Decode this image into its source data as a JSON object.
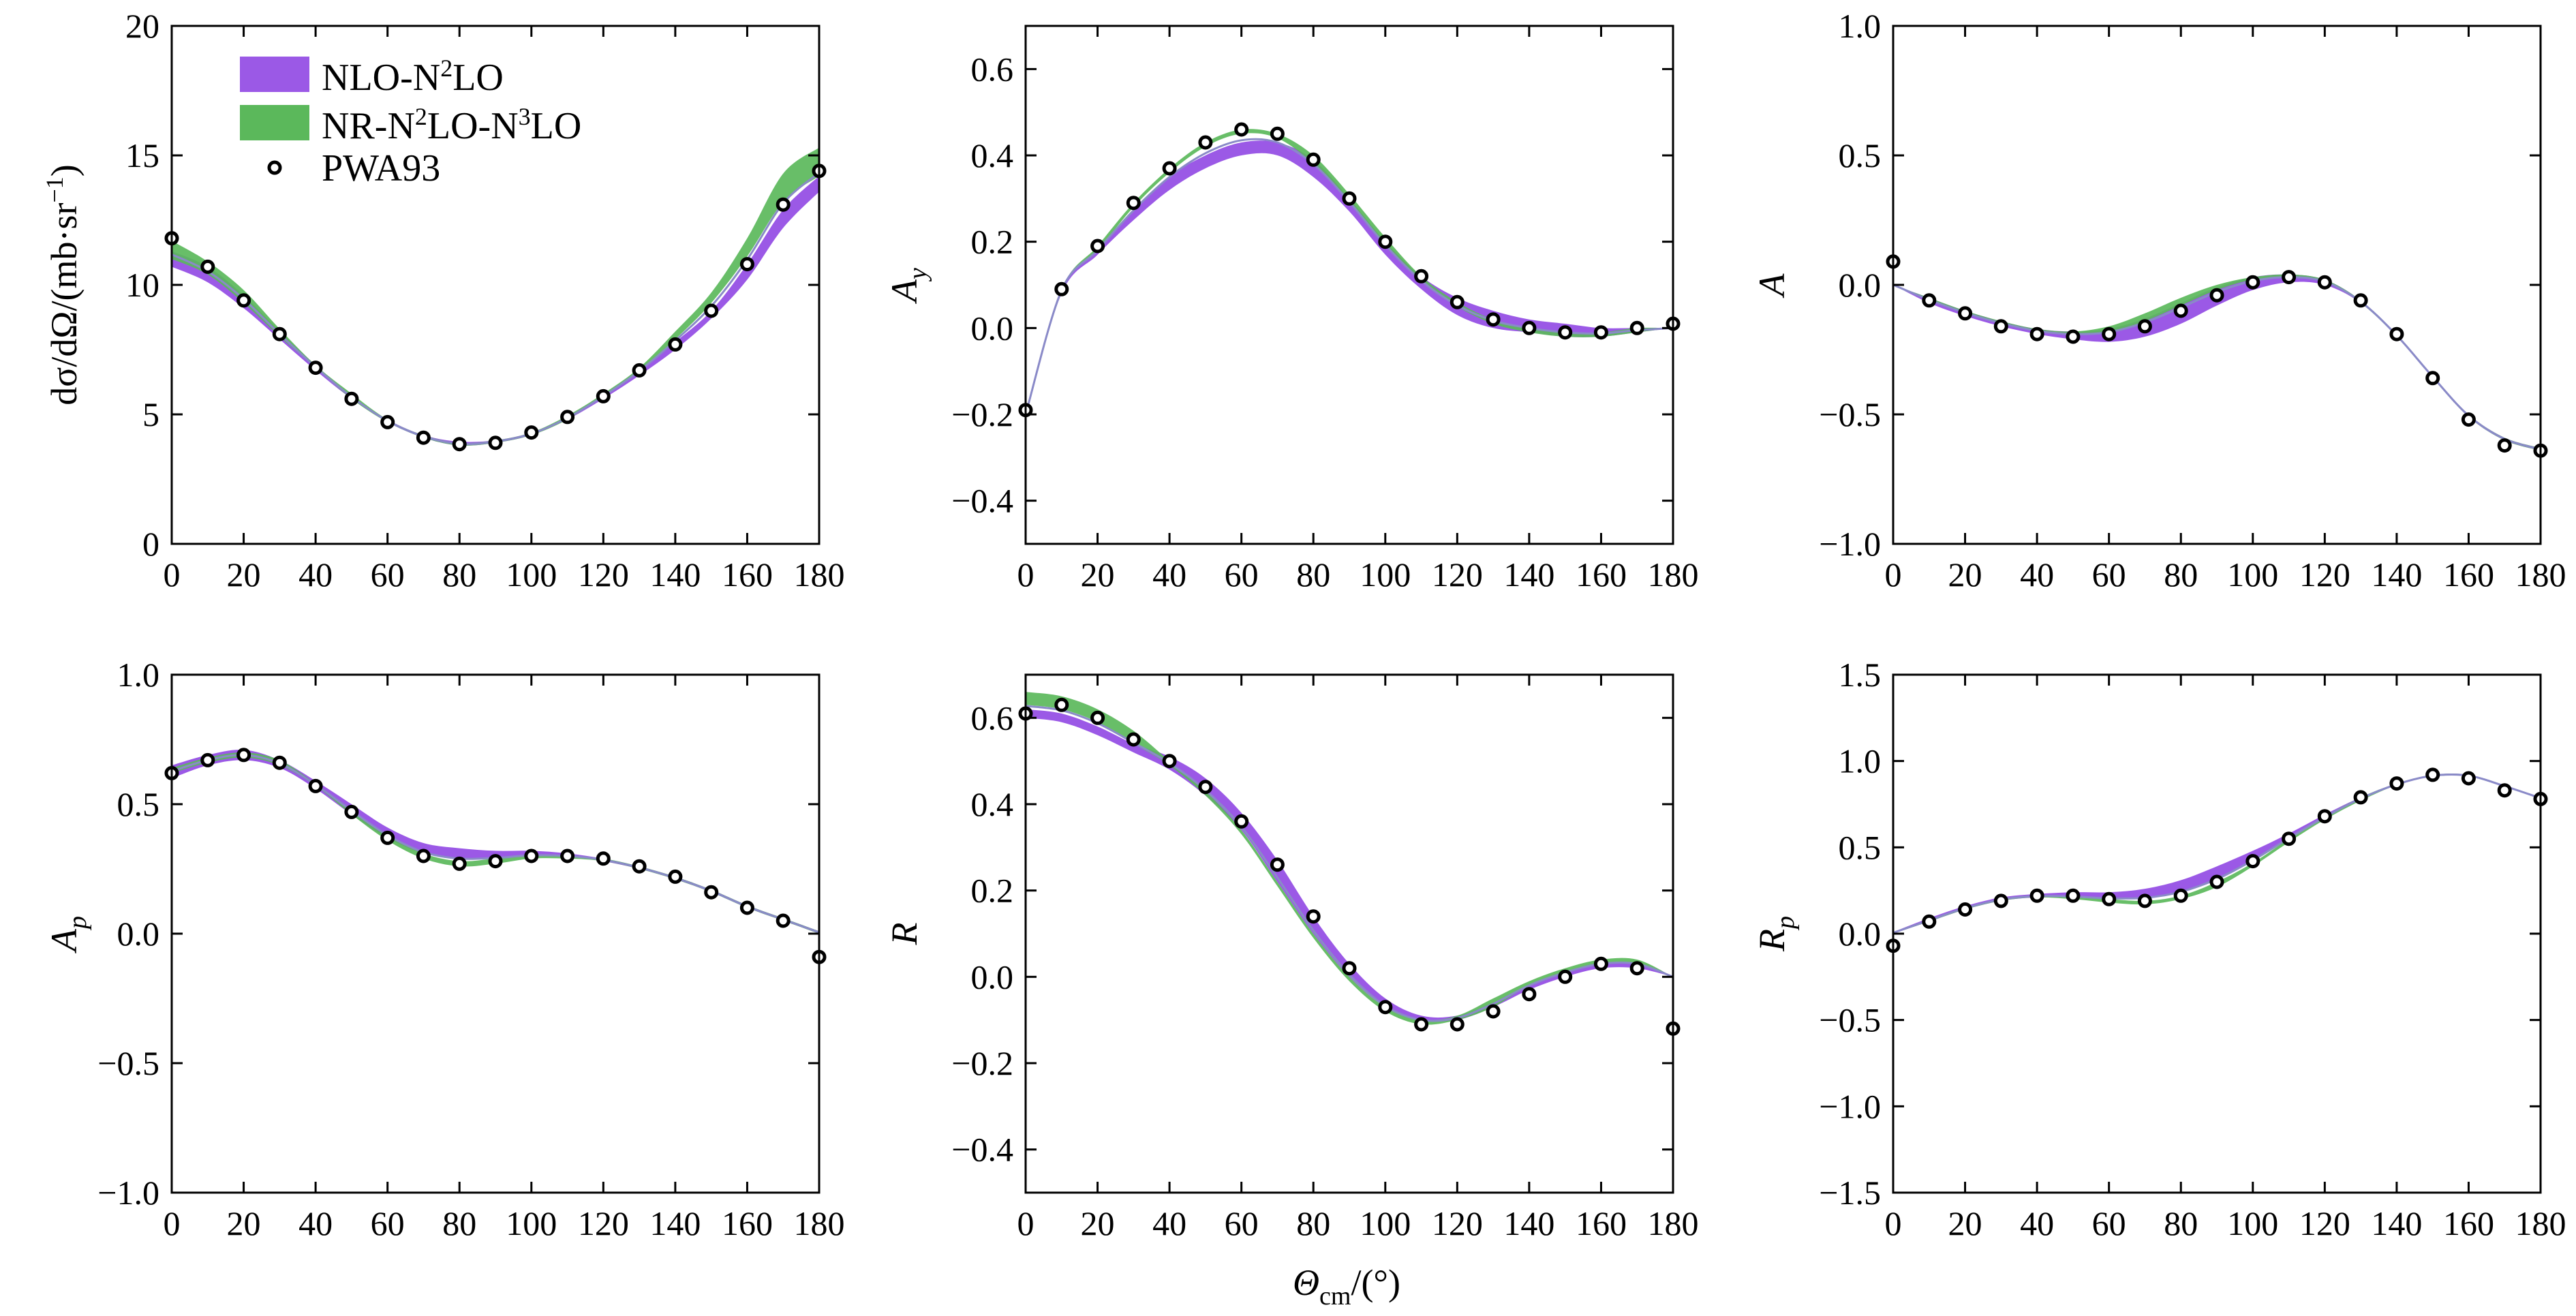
{
  "legend": {
    "items": [
      {
        "label_main": "NLO-N",
        "sup": "2",
        "label_tail": "LO",
        "color": "#9b59e6"
      },
      {
        "label_main": "NR-N",
        "sup": "2",
        "label_mid": "LO-N",
        "sup2": "3",
        "label_tail": "LO",
        "color": "#5bb85b"
      },
      {
        "label_main": "PWA93"
      }
    ]
  },
  "x_axis_label": {
    "main": "Θ",
    "sub": "cm",
    "tail": "/(°)"
  },
  "colors": {
    "nlo_band": "#9b59e6",
    "nr_band": "#5bb85b",
    "thin_line": "#8a8ac8",
    "marker": "#000000"
  },
  "chart_data": [
    {
      "id": "dsdo",
      "type": "line",
      "ylabel": {
        "parts": [
          "dσ/dΩ/(mb·sr",
          "−1",
          ")"
        ]
      },
      "ylim": [
        0,
        20
      ],
      "yticks": [
        0,
        5,
        10,
        15,
        20
      ],
      "ytick_labels": [
        "0",
        "5",
        "10",
        "15",
        "20"
      ],
      "xlim": [
        0,
        180
      ],
      "xticks": [
        0,
        20,
        40,
        60,
        80,
        100,
        120,
        140,
        160,
        180
      ],
      "xtick_labels": [
        "0",
        "20",
        "40",
        "60",
        "80",
        "100",
        "120",
        "140",
        "160",
        "180"
      ],
      "x": [
        0,
        10,
        20,
        30,
        40,
        50,
        60,
        70,
        80,
        90,
        100,
        110,
        120,
        130,
        140,
        150,
        160,
        170,
        180
      ],
      "series": [
        {
          "name": "NLO-N2LO",
          "kind": "band",
          "lower": [
            10.7,
            10.1,
            9.1,
            7.9,
            6.7,
            5.6,
            4.7,
            4.1,
            3.8,
            3.9,
            4.2,
            4.8,
            5.6,
            6.5,
            7.5,
            8.7,
            10.2,
            12.2,
            13.6
          ],
          "upper": [
            11.3,
            10.7,
            9.6,
            8.2,
            6.9,
            5.7,
            4.8,
            4.2,
            3.95,
            4.0,
            4.3,
            4.9,
            5.7,
            6.7,
            7.8,
            9.0,
            10.8,
            12.9,
            14.2
          ]
        },
        {
          "name": "NR-N2LO-N3LO",
          "kind": "band",
          "lower": [
            11.0,
            10.4,
            9.3,
            8.0,
            6.8,
            5.6,
            4.7,
            4.1,
            3.8,
            3.9,
            4.2,
            4.8,
            5.7,
            6.7,
            7.9,
            9.3,
            11.1,
            13.2,
            14.2
          ],
          "upper": [
            11.7,
            10.9,
            9.8,
            8.3,
            6.9,
            5.8,
            4.8,
            4.2,
            3.9,
            4.0,
            4.3,
            4.95,
            5.8,
            6.8,
            8.2,
            9.7,
            11.8,
            14.3,
            15.3
          ]
        },
        {
          "name": "PWA93",
          "kind": "points",
          "values": [
            11.8,
            10.7,
            9.4,
            8.1,
            6.8,
            5.6,
            4.7,
            4.1,
            3.85,
            3.9,
            4.3,
            4.9,
            5.7,
            6.7,
            7.7,
            9.0,
            10.8,
            13.1,
            14.4
          ]
        }
      ]
    },
    {
      "id": "ay",
      "type": "line",
      "ylabel": {
        "parts": [
          "A",
          "y",
          ""
        ]
      },
      "ylim": [
        -0.5,
        0.7
      ],
      "yticks": [
        -0.4,
        -0.2,
        0.0,
        0.2,
        0.4,
        0.6
      ],
      "ytick_labels": [
        "−0.4",
        "−0.2",
        "0.0",
        "0.2",
        "0.4",
        "0.6"
      ],
      "xlim": [
        0,
        180
      ],
      "xticks": [
        0,
        20,
        40,
        60,
        80,
        100,
        120,
        140,
        160,
        180
      ],
      "xtick_labels": [
        "0",
        "20",
        "40",
        "60",
        "80",
        "100",
        "120",
        "140",
        "160",
        "180"
      ],
      "x": [
        0,
        10,
        20,
        30,
        40,
        50,
        60,
        70,
        80,
        90,
        100,
        110,
        120,
        130,
        140,
        150,
        160,
        170,
        180
      ],
      "series": [
        {
          "name": "NLO-N2LO",
          "kind": "band",
          "lower": [
            -0.2,
            0.08,
            0.17,
            0.25,
            0.32,
            0.37,
            0.4,
            0.4,
            0.35,
            0.27,
            0.17,
            0.09,
            0.03,
            0.0,
            -0.01,
            -0.02,
            -0.02,
            -0.01,
            0.0
          ],
          "upper": [
            -0.2,
            0.09,
            0.18,
            0.27,
            0.35,
            0.4,
            0.43,
            0.43,
            0.39,
            0.3,
            0.2,
            0.12,
            0.07,
            0.04,
            0.02,
            0.01,
            0.0,
            0.0,
            0.0
          ]
        },
        {
          "name": "NR-N2LO-N3LO",
          "kind": "band",
          "lower": [
            -0.2,
            0.09,
            0.18,
            0.28,
            0.36,
            0.42,
            0.45,
            0.44,
            0.38,
            0.29,
            0.19,
            0.11,
            0.05,
            0.01,
            -0.01,
            -0.02,
            -0.02,
            -0.01,
            0.0
          ],
          "upper": [
            -0.2,
            0.09,
            0.19,
            0.29,
            0.37,
            0.43,
            0.46,
            0.45,
            0.4,
            0.31,
            0.21,
            0.12,
            0.06,
            0.02,
            0.0,
            -0.01,
            -0.01,
            0.0,
            0.0
          ]
        },
        {
          "name": "PWA93",
          "kind": "points",
          "values": [
            -0.19,
            0.09,
            0.19,
            0.29,
            0.37,
            0.43,
            0.46,
            0.45,
            0.39,
            0.3,
            0.2,
            0.12,
            0.06,
            0.02,
            0.0,
            -0.01,
            -0.01,
            0.0,
            0.01
          ]
        }
      ]
    },
    {
      "id": "a",
      "type": "line",
      "ylabel": {
        "parts": [
          "A",
          "",
          ""
        ]
      },
      "ylim": [
        -1.0,
        1.0
      ],
      "yticks": [
        -1.0,
        -0.5,
        0.0,
        0.5,
        1.0
      ],
      "ytick_labels": [
        "−1.0",
        "−0.5",
        "0.0",
        "0.5",
        "1.0"
      ],
      "xlim": [
        0,
        180
      ],
      "xticks": [
        0,
        20,
        40,
        60,
        80,
        100,
        120,
        140,
        160,
        180
      ],
      "xtick_labels": [
        "0",
        "20",
        "40",
        "60",
        "80",
        "100",
        "120",
        "140",
        "160",
        "180"
      ],
      "x": [
        0,
        10,
        20,
        30,
        40,
        50,
        60,
        70,
        80,
        90,
        100,
        110,
        120,
        130,
        140,
        150,
        160,
        170,
        180
      ],
      "series": [
        {
          "name": "NLO-N2LO",
          "kind": "band",
          "lower": [
            0.0,
            -0.07,
            -0.12,
            -0.16,
            -0.19,
            -0.21,
            -0.22,
            -0.2,
            -0.15,
            -0.08,
            -0.02,
            0.01,
            0.0,
            -0.07,
            -0.2,
            -0.36,
            -0.51,
            -0.6,
            -0.64
          ],
          "upper": [
            0.0,
            -0.05,
            -0.1,
            -0.14,
            -0.17,
            -0.18,
            -0.17,
            -0.13,
            -0.07,
            -0.01,
            0.03,
            0.04,
            0.02,
            -0.06,
            -0.19,
            -0.35,
            -0.5,
            -0.59,
            -0.63
          ]
        },
        {
          "name": "NR-N2LO-N3LO",
          "kind": "band",
          "lower": [
            0.0,
            -0.06,
            -0.11,
            -0.15,
            -0.18,
            -0.19,
            -0.18,
            -0.14,
            -0.08,
            -0.02,
            0.02,
            0.03,
            0.01,
            -0.07,
            -0.2,
            -0.36,
            -0.51,
            -0.6,
            -0.64
          ],
          "upper": [
            0.0,
            -0.05,
            -0.1,
            -0.14,
            -0.17,
            -0.18,
            -0.16,
            -0.11,
            -0.05,
            0.0,
            0.03,
            0.04,
            0.02,
            -0.06,
            -0.19,
            -0.35,
            -0.5,
            -0.59,
            -0.63
          ]
        },
        {
          "name": "PWA93",
          "kind": "points",
          "values": [
            0.09,
            -0.06,
            -0.11,
            -0.16,
            -0.19,
            -0.2,
            -0.19,
            -0.16,
            -0.1,
            -0.04,
            0.01,
            0.03,
            0.01,
            -0.06,
            -0.19,
            -0.36,
            -0.52,
            -0.62,
            -0.64
          ]
        }
      ]
    },
    {
      "id": "ap",
      "type": "line",
      "ylabel": {
        "parts": [
          "A",
          "p",
          ""
        ]
      },
      "ylim": [
        -1.0,
        1.0
      ],
      "yticks": [
        -1.0,
        -0.5,
        0.0,
        0.5,
        1.0
      ],
      "ytick_labels": [
        "−1.0",
        "−0.5",
        "0.0",
        "0.5",
        "1.0"
      ],
      "xlim": [
        0,
        180
      ],
      "xticks": [
        0,
        20,
        40,
        60,
        80,
        100,
        120,
        140,
        160,
        180
      ],
      "xtick_labels": [
        "0",
        "20",
        "40",
        "60",
        "80",
        "100",
        "120",
        "140",
        "160",
        "180"
      ],
      "x": [
        0,
        10,
        20,
        30,
        40,
        50,
        60,
        70,
        80,
        90,
        100,
        110,
        120,
        130,
        140,
        150,
        160,
        170,
        180
      ],
      "series": [
        {
          "name": "NLO-N2LO",
          "kind": "band",
          "lower": [
            0.6,
            0.65,
            0.67,
            0.64,
            0.56,
            0.46,
            0.37,
            0.31,
            0.29,
            0.29,
            0.3,
            0.3,
            0.28,
            0.25,
            0.21,
            0.16,
            0.1,
            0.05,
            0.0
          ],
          "upper": [
            0.65,
            0.69,
            0.71,
            0.67,
            0.59,
            0.5,
            0.41,
            0.35,
            0.33,
            0.32,
            0.32,
            0.31,
            0.29,
            0.26,
            0.22,
            0.17,
            0.11,
            0.06,
            0.01
          ]
        },
        {
          "name": "NR-N2LO-N3LO",
          "kind": "band",
          "lower": [
            0.62,
            0.66,
            0.68,
            0.65,
            0.57,
            0.46,
            0.36,
            0.29,
            0.26,
            0.27,
            0.29,
            0.29,
            0.28,
            0.25,
            0.21,
            0.16,
            0.1,
            0.05,
            0.0
          ],
          "upper": [
            0.64,
            0.68,
            0.7,
            0.67,
            0.58,
            0.48,
            0.38,
            0.31,
            0.28,
            0.29,
            0.3,
            0.3,
            0.29,
            0.26,
            0.22,
            0.17,
            0.11,
            0.06,
            0.01
          ]
        },
        {
          "name": "PWA93",
          "kind": "points",
          "values": [
            0.62,
            0.67,
            0.69,
            0.66,
            0.57,
            0.47,
            0.37,
            0.3,
            0.27,
            0.28,
            0.3,
            0.3,
            0.29,
            0.26,
            0.22,
            0.16,
            0.1,
            0.05,
            -0.09
          ]
        }
      ]
    },
    {
      "id": "r",
      "type": "line",
      "ylabel": {
        "parts": [
          "R",
          "",
          ""
        ]
      },
      "ylim": [
        -0.5,
        0.7
      ],
      "yticks": [
        -0.4,
        -0.2,
        0.0,
        0.2,
        0.4,
        0.6
      ],
      "ytick_labels": [
        "−0.4",
        "−0.2",
        "0.0",
        "0.2",
        "0.4",
        "0.6"
      ],
      "xlim": [
        0,
        180
      ],
      "xticks": [
        0,
        20,
        40,
        60,
        80,
        100,
        120,
        140,
        160,
        180
      ],
      "xtick_labels": [
        "0",
        "20",
        "40",
        "60",
        "80",
        "100",
        "120",
        "140",
        "160",
        "180"
      ],
      "x": [
        0,
        10,
        20,
        30,
        40,
        50,
        60,
        70,
        80,
        90,
        100,
        110,
        120,
        130,
        140,
        150,
        160,
        170,
        180
      ],
      "series": [
        {
          "name": "NLO-N2LO",
          "kind": "band",
          "lower": [
            0.6,
            0.59,
            0.56,
            0.52,
            0.48,
            0.42,
            0.34,
            0.22,
            0.1,
            0.0,
            -0.07,
            -0.1,
            -0.1,
            -0.07,
            -0.03,
            0.0,
            0.02,
            0.02,
            0.0
          ],
          "upper": [
            0.62,
            0.61,
            0.58,
            0.54,
            0.51,
            0.46,
            0.38,
            0.27,
            0.14,
            0.03,
            -0.05,
            -0.09,
            -0.09,
            -0.06,
            -0.02,
            0.01,
            0.03,
            0.03,
            0.0
          ]
        },
        {
          "name": "NR-N2LO-N3LO",
          "kind": "band",
          "lower": [
            0.63,
            0.62,
            0.59,
            0.54,
            0.49,
            0.42,
            0.33,
            0.21,
            0.09,
            -0.01,
            -0.08,
            -0.11,
            -0.1,
            -0.07,
            -0.02,
            0.01,
            0.03,
            0.03,
            0.0
          ],
          "upper": [
            0.66,
            0.65,
            0.62,
            0.57,
            0.5,
            0.43,
            0.34,
            0.22,
            0.1,
            0.0,
            -0.07,
            -0.1,
            -0.09,
            -0.05,
            -0.01,
            0.02,
            0.04,
            0.04,
            0.0
          ]
        },
        {
          "name": "PWA93",
          "kind": "points",
          "values": [
            0.61,
            0.63,
            0.6,
            0.55,
            0.5,
            0.44,
            0.36,
            0.26,
            0.14,
            0.02,
            -0.07,
            -0.11,
            -0.11,
            -0.08,
            -0.04,
            0.0,
            0.03,
            0.02,
            -0.12
          ]
        }
      ]
    },
    {
      "id": "rp",
      "type": "line",
      "ylabel": {
        "parts": [
          "R",
          "p",
          ""
        ]
      },
      "ylim": [
        -1.5,
        1.5
      ],
      "yticks": [
        -1.5,
        -1.0,
        -0.5,
        0.0,
        0.5,
        1.0,
        1.5
      ],
      "ytick_labels": [
        "−1.5",
        "−1.0",
        "−0.5",
        "0.0",
        "0.5",
        "1.0",
        "1.5"
      ],
      "xlim": [
        0,
        180
      ],
      "xticks": [
        0,
        20,
        40,
        60,
        80,
        100,
        120,
        140,
        160,
        180
      ],
      "xtick_labels": [
        "0",
        "20",
        "40",
        "60",
        "80",
        "100",
        "120",
        "140",
        "160",
        "180"
      ],
      "x": [
        0,
        10,
        20,
        30,
        40,
        50,
        60,
        70,
        80,
        90,
        100,
        110,
        120,
        130,
        140,
        150,
        160,
        170,
        180
      ],
      "series": [
        {
          "name": "NLO-N2LO",
          "kind": "band",
          "lower": [
            0.0,
            0.07,
            0.14,
            0.19,
            0.21,
            0.21,
            0.2,
            0.21,
            0.24,
            0.31,
            0.42,
            0.55,
            0.67,
            0.78,
            0.86,
            0.91,
            0.91,
            0.85,
            0.78
          ],
          "upper": [
            0.01,
            0.09,
            0.16,
            0.21,
            0.23,
            0.24,
            0.24,
            0.26,
            0.31,
            0.39,
            0.48,
            0.58,
            0.69,
            0.79,
            0.87,
            0.92,
            0.92,
            0.86,
            0.79
          ]
        },
        {
          "name": "NR-N2LO-N3LO",
          "kind": "band",
          "lower": [
            0.0,
            0.07,
            0.14,
            0.19,
            0.21,
            0.2,
            0.18,
            0.17,
            0.2,
            0.27,
            0.39,
            0.53,
            0.66,
            0.77,
            0.86,
            0.91,
            0.91,
            0.85,
            0.78
          ],
          "upper": [
            0.01,
            0.08,
            0.15,
            0.2,
            0.22,
            0.21,
            0.2,
            0.19,
            0.22,
            0.3,
            0.41,
            0.55,
            0.68,
            0.79,
            0.87,
            0.92,
            0.92,
            0.86,
            0.79
          ]
        },
        {
          "name": "PWA93",
          "kind": "points",
          "values": [
            -0.07,
            0.07,
            0.14,
            0.19,
            0.22,
            0.22,
            0.2,
            0.19,
            0.22,
            0.3,
            0.42,
            0.55,
            0.68,
            0.79,
            0.87,
            0.92,
            0.9,
            0.83,
            0.78
          ]
        }
      ]
    }
  ]
}
